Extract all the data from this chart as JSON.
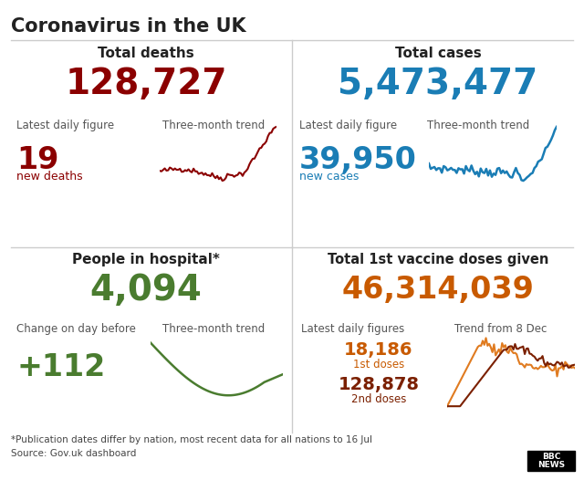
{
  "title": "Coronavirus in the UK",
  "bg_color": "#ffffff",
  "title_color": "#222222",
  "panel_tl_header": "Total deaths",
  "panel_tl_big_number": "128,727",
  "panel_tl_big_color": "#8B0000",
  "panel_tl_label1": "Latest daily figure",
  "panel_tl_label2": "Three-month trend",
  "panel_tl_daily": "19",
  "panel_tl_daily_color": "#8B0000",
  "panel_tl_daily_sub": "new deaths",
  "panel_tl_daily_sub_color": "#8B0000",
  "panel_tr_header": "Total cases",
  "panel_tr_big_number": "5,473,477",
  "panel_tr_big_color": "#1a7db5",
  "panel_tr_label1": "Latest daily figure",
  "panel_tr_label2": "Three-month trend",
  "panel_tr_daily": "39,950",
  "panel_tr_daily_color": "#1a7db5",
  "panel_tr_daily_sub": "new cases",
  "panel_tr_daily_sub_color": "#1a7db5",
  "panel_bl_header": "People in hospital*",
  "panel_bl_big_number": "4,094",
  "panel_bl_big_color": "#4a7c2f",
  "panel_bl_label1": "Change on day before",
  "panel_bl_label2": "Three-month trend",
  "panel_bl_daily": "+112",
  "panel_bl_daily_color": "#4a7c2f",
  "panel_br_header": "Total 1st vaccine doses given",
  "panel_br_big_number": "46,314,039",
  "panel_br_big_color": "#c85a00",
  "panel_br_label1": "Latest daily figures",
  "panel_br_label2": "Trend from 8 Dec",
  "panel_br_dose1": "18,186",
  "panel_br_dose1_color": "#c85a00",
  "panel_br_dose1_label": "1st doses",
  "panel_br_dose1_label_color": "#c85a00",
  "panel_br_dose2": "128,878",
  "panel_br_dose2_color": "#7B2000",
  "panel_br_dose2_label": "2nd doses",
  "panel_br_dose2_label_color": "#7B2000",
  "footer_note": "*Publication dates differ by nation, most recent data for all nations to 16 Jul",
  "footer_source": "Source: Gov.uk dashboard",
  "footer_bbc": "BBC\nNEWS",
  "deaths_trend_color": "#8B0000",
  "cases_trend_color": "#1a7db5",
  "hospital_trend_color": "#4a7c2f",
  "vaccine_dose1_trend_color": "#e07b20",
  "vaccine_dose2_trend_color": "#7B2000"
}
